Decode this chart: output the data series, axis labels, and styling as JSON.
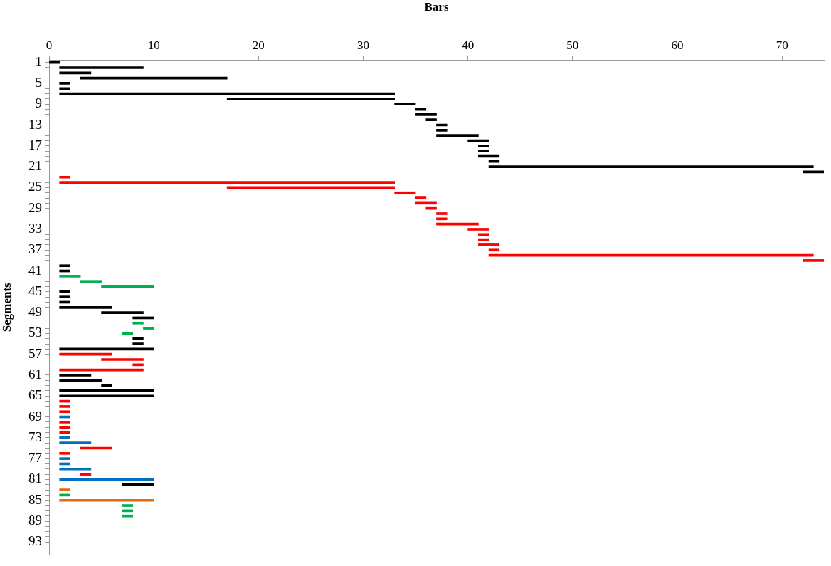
{
  "chart_data": {
    "type": "bar",
    "orientation": "horizontal",
    "xlabel": "Bars",
    "ylabel": "Segments",
    "categories": [
      "1",
      null,
      null,
      null,
      "5",
      null,
      null,
      null,
      "9",
      null,
      null,
      null,
      "13",
      null,
      null,
      null,
      "17",
      null,
      null,
      null,
      "21",
      null,
      null,
      null,
      "25",
      null,
      null,
      null,
      "29",
      null,
      null,
      null,
      "33",
      null,
      null,
      null,
      "37",
      null,
      null,
      null,
      "41",
      null,
      null,
      null,
      "45",
      null,
      null,
      null,
      "49",
      null,
      null,
      null,
      "53",
      null,
      null,
      null,
      "57",
      null,
      null,
      null,
      "61",
      null,
      null,
      null,
      "65",
      null,
      null,
      null,
      "69",
      null,
      null,
      null,
      "73",
      null,
      null,
      null,
      "77",
      null,
      null,
      null,
      "81",
      null,
      null,
      null,
      "85",
      null,
      null,
      null,
      "89",
      null,
      null,
      null,
      "93",
      null,
      null
    ],
    "base": [
      0,
      1,
      1,
      3,
      1,
      1,
      1,
      17,
      33,
      35,
      35,
      36,
      37,
      37,
      37,
      40,
      41,
      41,
      41,
      42,
      42,
      72,
      1,
      1,
      17,
      33,
      35,
      35,
      36,
      37,
      37,
      37,
      40,
      41,
      41,
      41,
      42,
      42,
      72,
      1,
      1,
      1,
      3,
      5,
      1,
      1,
      1,
      1,
      5,
      8,
      8,
      9,
      7,
      8,
      8,
      1,
      1,
      5,
      8,
      1,
      1,
      1,
      5,
      1,
      1,
      1,
      1,
      1,
      1,
      1,
      1,
      1,
      1,
      1,
      3,
      1,
      1,
      1,
      1,
      3,
      1,
      7,
      1,
      1,
      1,
      7,
      7,
      7,
      null,
      null,
      null,
      null,
      null,
      null,
      null
    ],
    "values": [
      1,
      8,
      3,
      14,
      1,
      1,
      32,
      16,
      2,
      1,
      2,
      1,
      1,
      1,
      4,
      2,
      1,
      1,
      2,
      1,
      31,
      2,
      1,
      32,
      16,
      2,
      1,
      2,
      1,
      1,
      1,
      4,
      2,
      1,
      1,
      2,
      1,
      31,
      2,
      1,
      1,
      2,
      2,
      5,
      1,
      1,
      1,
      5,
      4,
      2,
      1,
      1,
      1,
      1,
      1,
      9,
      5,
      4,
      1,
      8,
      3,
      4,
      1,
      9,
      9,
      1,
      1,
      1,
      1,
      1,
      1,
      1,
      1,
      3,
      3,
      1,
      1,
      1,
      3,
      1,
      9,
      3,
      1,
      1,
      9,
      1,
      1,
      1,
      null,
      null,
      null,
      null,
      null,
      null,
      null
    ],
    "colors": [
      "#000000",
      "#000000",
      "#000000",
      "#000000",
      "#000000",
      "#000000",
      "#000000",
      "#000000",
      "#000000",
      "#000000",
      "#000000",
      "#000000",
      "#000000",
      "#000000",
      "#000000",
      "#000000",
      "#000000",
      "#000000",
      "#000000",
      "#000000",
      "#000000",
      "#000000",
      "#ff0000",
      "#ff0000",
      "#ff0000",
      "#ff0000",
      "#ff0000",
      "#ff0000",
      "#ff0000",
      "#ff0000",
      "#ff0000",
      "#ff0000",
      "#ff0000",
      "#ff0000",
      "#ff0000",
      "#ff0000",
      "#ff0000",
      "#ff0000",
      "#ff0000",
      "#000000",
      "#000000",
      "#00b050",
      "#00b050",
      "#00b050",
      "#000000",
      "#000000",
      "#000000",
      "#000000",
      "#000000",
      "#000000",
      "#00b050",
      "#00b050",
      "#00b050",
      "#000000",
      "#000000",
      "#000000",
      "#ff0000",
      "#ff0000",
      "#ff0000",
      "#ff0000",
      "#000000",
      "#000000",
      "#000000",
      "#000000",
      "#000000",
      "#ff0000",
      "#ff0000",
      "#ff0000",
      "#0070c0",
      "#ff0000",
      "#ff0000",
      "#ff0000",
      "#0070c0",
      "#0070c0",
      "#ff0000",
      "#ff0000",
      "#0070c0",
      "#0070c0",
      "#0070c0",
      "#ff0000",
      "#0070c0",
      "#000000",
      "#e26b0a",
      "#00b050",
      "#e26b0a",
      "#00b050",
      "#00b050",
      "#00b050",
      "#000000",
      "#000000",
      "#000000",
      "#000000",
      "#000000",
      "#000000",
      "#000000"
    ],
    "xlim": [
      0,
      74
    ],
    "xticks": [
      0,
      10,
      20,
      30,
      40,
      50,
      60,
      70
    ]
  }
}
